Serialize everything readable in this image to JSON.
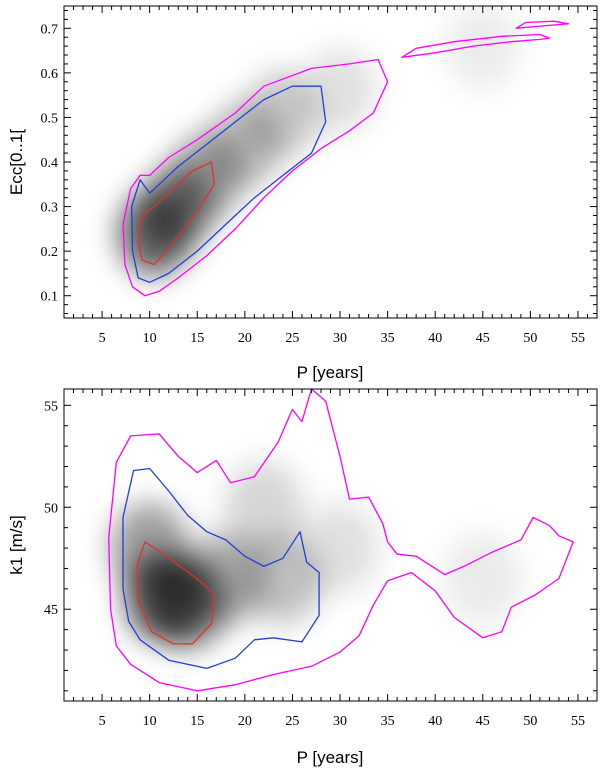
{
  "colors": {
    "outer_contour": "#ff00ff",
    "middle_contour": "#1f3fd6",
    "inner_contour": "#e0302a",
    "density": "#000000"
  },
  "chart_data": [
    {
      "type": "heatmap",
      "xlabel": "P [years]",
      "ylabel": "Ecc[0..1[",
      "xlim": [
        1,
        57
      ],
      "ylim": [
        0.05,
        0.75
      ],
      "xticks": [
        5,
        10,
        15,
        20,
        25,
        30,
        35,
        40,
        45,
        50,
        55
      ],
      "yticks": [
        0.1,
        0.2,
        0.3,
        0.4,
        0.5,
        0.6,
        0.7
      ],
      "density_peaks": [
        {
          "x": 10.5,
          "y": 0.24,
          "w": 1.0
        },
        {
          "x": 13,
          "y": 0.3,
          "w": 0.75
        },
        {
          "x": 16,
          "y": 0.37,
          "w": 0.55
        },
        {
          "x": 20,
          "y": 0.44,
          "w": 0.4
        },
        {
          "x": 24,
          "y": 0.51,
          "w": 0.3
        },
        {
          "x": 30,
          "y": 0.56,
          "w": 0.12
        },
        {
          "x": 45,
          "y": 0.66,
          "w": 0.05
        }
      ],
      "contours": [
        {
          "level": "outer",
          "points": [
            [
              8.2,
              0.12
            ],
            [
              9.5,
              0.1
            ],
            [
              11,
              0.11
            ],
            [
              13,
              0.14
            ],
            [
              16,
              0.19
            ],
            [
              19,
              0.25
            ],
            [
              22,
              0.32
            ],
            [
              25,
              0.38
            ],
            [
              28,
              0.43
            ],
            [
              31,
              0.47
            ],
            [
              33.5,
              0.51
            ],
            [
              35,
              0.58
            ],
            [
              34,
              0.63
            ],
            [
              31,
              0.62
            ],
            [
              27,
              0.61
            ],
            [
              22,
              0.57
            ],
            [
              19,
              0.51
            ],
            [
              15,
              0.45
            ],
            [
              12,
              0.41
            ],
            [
              10,
              0.37
            ],
            [
              9,
              0.37
            ],
            [
              8,
              0.34
            ],
            [
              7.2,
              0.26
            ],
            [
              7.4,
              0.17
            ],
            [
              8.2,
              0.12
            ]
          ]
        },
        {
          "level": "outer",
          "points": [
            [
              36.5,
              0.635
            ],
            [
              40,
              0.645
            ],
            [
              44,
              0.66
            ],
            [
              48,
              0.67
            ],
            [
              51,
              0.675
            ],
            [
              52,
              0.678
            ],
            [
              51,
              0.686
            ],
            [
              47,
              0.682
            ],
            [
              42,
              0.67
            ],
            [
              38,
              0.655
            ],
            [
              36.5,
              0.635
            ]
          ]
        },
        {
          "level": "outer",
          "points": [
            [
              48.5,
              0.7
            ],
            [
              51,
              0.705
            ],
            [
              54,
              0.71
            ],
            [
              52.5,
              0.716
            ],
            [
              49.5,
              0.713
            ],
            [
              48.5,
              0.7
            ]
          ]
        },
        {
          "level": "middle",
          "points": [
            [
              8.8,
              0.14
            ],
            [
              10,
              0.13
            ],
            [
              12,
              0.15
            ],
            [
              15,
              0.2
            ],
            [
              18,
              0.26
            ],
            [
              21,
              0.32
            ],
            [
              24,
              0.37
            ],
            [
              27,
              0.42
            ],
            [
              28.5,
              0.49
            ],
            [
              28,
              0.57
            ],
            [
              25,
              0.57
            ],
            [
              22,
              0.54
            ],
            [
              19,
              0.49
            ],
            [
              16,
              0.44
            ],
            [
              13,
              0.39
            ],
            [
              11,
              0.35
            ],
            [
              10,
              0.33
            ],
            [
              9,
              0.36
            ],
            [
              8.1,
              0.3
            ],
            [
              8.2,
              0.2
            ],
            [
              8.8,
              0.14
            ]
          ]
        },
        {
          "level": "inner",
          "points": [
            [
              9.2,
              0.18
            ],
            [
              10.5,
              0.17
            ],
            [
              12.5,
              0.22
            ],
            [
              15,
              0.29
            ],
            [
              16.8,
              0.35
            ],
            [
              16.5,
              0.4
            ],
            [
              14.5,
              0.38
            ],
            [
              12.5,
              0.34
            ],
            [
              10.5,
              0.3
            ],
            [
              9.2,
              0.28
            ],
            [
              8.8,
              0.22
            ],
            [
              9.2,
              0.18
            ]
          ]
        }
      ]
    },
    {
      "type": "heatmap",
      "xlabel": "P [years]",
      "ylabel": "k1 [m/s]",
      "xlim": [
        1,
        57
      ],
      "ylim": [
        40.5,
        55.8
      ],
      "xticks": [
        5,
        10,
        15,
        20,
        25,
        30,
        35,
        40,
        45,
        50,
        55
      ],
      "yticks": [
        45,
        50,
        55
      ],
      "density_peaks": [
        {
          "x": 11.5,
          "y": 45.6,
          "w": 1.0
        },
        {
          "x": 14,
          "y": 45.3,
          "w": 0.85
        },
        {
          "x": 10,
          "y": 48,
          "w": 0.6
        },
        {
          "x": 18,
          "y": 46.5,
          "w": 0.5
        },
        {
          "x": 24,
          "y": 46.5,
          "w": 0.35
        },
        {
          "x": 22,
          "y": 50,
          "w": 0.2
        },
        {
          "x": 30,
          "y": 48,
          "w": 0.12
        },
        {
          "x": 45,
          "y": 46.5,
          "w": 0.06
        }
      ],
      "contours": [
        {
          "level": "outer",
          "points": [
            [
              8,
              42.3
            ],
            [
              11,
              41.4
            ],
            [
              15,
              41
            ],
            [
              19,
              41.3
            ],
            [
              23,
              41.8
            ],
            [
              27,
              42.2
            ],
            [
              30,
              42.9
            ],
            [
              32,
              43.7
            ],
            [
              33.5,
              45.2
            ],
            [
              35,
              46.4
            ],
            [
              37.5,
              46.8
            ],
            [
              40,
              45.9
            ],
            [
              42,
              44.6
            ],
            [
              45,
              43.6
            ],
            [
              47,
              43.9
            ],
            [
              48,
              45.1
            ],
            [
              50.5,
              45.7
            ],
            [
              53,
              46.5
            ],
            [
              54.5,
              48.3
            ],
            [
              53,
              48.6
            ],
            [
              52,
              49.1
            ],
            [
              50.3,
              49.5
            ],
            [
              49,
              48.4
            ],
            [
              46,
              47.8
            ],
            [
              43,
              47.1
            ],
            [
              41,
              46.7
            ],
            [
              38,
              47.6
            ],
            [
              36,
              47.7
            ],
            [
              35,
              48.3
            ],
            [
              34.5,
              49.2
            ],
            [
              33,
              50.5
            ],
            [
              31,
              50.4
            ],
            [
              30,
              52.5
            ],
            [
              28.5,
              55.2
            ],
            [
              27,
              55.8
            ],
            [
              26,
              54.2
            ],
            [
              25,
              54.8
            ],
            [
              23.5,
              53.2
            ],
            [
              21,
              51.5
            ],
            [
              18.5,
              51.2
            ],
            [
              17,
              52.3
            ],
            [
              15,
              51.7
            ],
            [
              13,
              52.5
            ],
            [
              11,
              53.6
            ],
            [
              8,
              53.5
            ],
            [
              6.5,
              52.2
            ],
            [
              5.7,
              48.5
            ],
            [
              5.9,
              45
            ],
            [
              6.5,
              43.2
            ],
            [
              8,
              42.3
            ]
          ]
        },
        {
          "level": "middle",
          "points": [
            [
              9,
              43.5
            ],
            [
              12,
              42.5
            ],
            [
              16,
              42.1
            ],
            [
              19,
              42.6
            ],
            [
              21,
              43.5
            ],
            [
              23,
              43.6
            ],
            [
              26,
              43.4
            ],
            [
              27.8,
              44.7
            ],
            [
              27.8,
              46.8
            ],
            [
              26.5,
              47.3
            ],
            [
              25.8,
              48.8
            ],
            [
              24,
              47.5
            ],
            [
              22,
              47.1
            ],
            [
              20,
              47.6
            ],
            [
              18,
              48.4
            ],
            [
              16,
              48.8
            ],
            [
              14,
              49.6
            ],
            [
              12,
              50.8
            ],
            [
              10,
              51.9
            ],
            [
              8.3,
              51.8
            ],
            [
              7.2,
              49.5
            ],
            [
              7.2,
              46
            ],
            [
              7.8,
              44.4
            ],
            [
              9,
              43.5
            ]
          ]
        },
        {
          "level": "inner",
          "points": [
            [
              10.2,
              43.9
            ],
            [
              12.5,
              43.3
            ],
            [
              14.5,
              43.3
            ],
            [
              16.5,
              44.3
            ],
            [
              16.8,
              45.7
            ],
            [
              15.5,
              46.3
            ],
            [
              13.8,
              46.9
            ],
            [
              11.5,
              47.7
            ],
            [
              9.5,
              48.3
            ],
            [
              8.7,
              47.2
            ],
            [
              8.8,
              45.4
            ],
            [
              10.2,
              43.9
            ]
          ]
        }
      ]
    }
  ]
}
